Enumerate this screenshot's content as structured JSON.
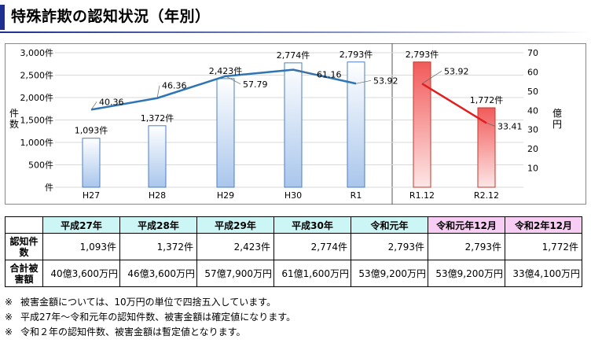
{
  "page_title": "特殊詐欺の認知状況（年別）",
  "chart_data": {
    "type": "bar",
    "title": "",
    "categories": [
      "H27",
      "H28",
      "H29",
      "H30",
      "R1",
      "R1.12",
      "R2.12"
    ],
    "series": [
      {
        "name": "",
        "values": [
          1093,
          1372,
          2423,
          2774,
          2793,
          2793,
          1772
        ],
        "labels": [
          "1,093件",
          "1,372件",
          "2,423件",
          "2,774件",
          "2,793件",
          "2,793件",
          "1,772件"
        ]
      },
      {
        "name": "",
        "values": [
          40.36,
          46.36,
          57.79,
          61.16,
          53.92,
          53.92,
          33.41
        ],
        "labels": [
          "40.36",
          "46.36",
          "57.79",
          "61.16",
          "53.92",
          "53.92",
          "33.41"
        ]
      }
    ],
    "ylim": [
      0,
      3000
    ],
    "y2lim": [
      0,
      70
    ],
    "yticks": [
      "3,000件",
      "2,500件",
      "2,000件",
      "1,500件",
      "1,000件",
      "500件",
      "件"
    ],
    "y2ticks": [
      "70",
      "60",
      "50",
      "40",
      "30",
      "20",
      "10"
    ],
    "ylabel": "件数",
    "y2label": "億円",
    "colors": {
      "bar_blue": "#c9dcf4",
      "bar_blue_edge": "#4a7fc4",
      "bar_red": "#f47c7c",
      "bar_red_edge": "#c0392b",
      "line_blue": "#2e75b6",
      "line_red": "#e02020"
    }
  },
  "table": {
    "headers": [
      "平成27年",
      "平成28年",
      "平成29年",
      "平成30年",
      "令和元年",
      "令和元年12月",
      "令和2年12月"
    ],
    "rows": [
      {
        "label": "認知件数",
        "values": [
          "1,093件",
          "1,372件",
          "2,423件",
          "2,774件",
          "2,793件",
          "2,793件",
          "1,772件"
        ]
      },
      {
        "label": "合計被害額",
        "values": [
          "40億3,600万円",
          "46億3,600万円",
          "57億7,900万円",
          "61億1,600万円",
          "53億9,200万円",
          "53億9,200万円",
          "33億4,100万円"
        ]
      }
    ]
  },
  "notes": [
    {
      "mark": "※",
      "text": "被害金額については、10万円の単位で四捨五入しています。"
    },
    {
      "mark": "※",
      "text": "平成27年～令和元年の認知件数、被害金額は確定値になります。"
    },
    {
      "mark": "※",
      "text": "令和２年の認知件数、被害金額は暫定値となります。"
    }
  ]
}
